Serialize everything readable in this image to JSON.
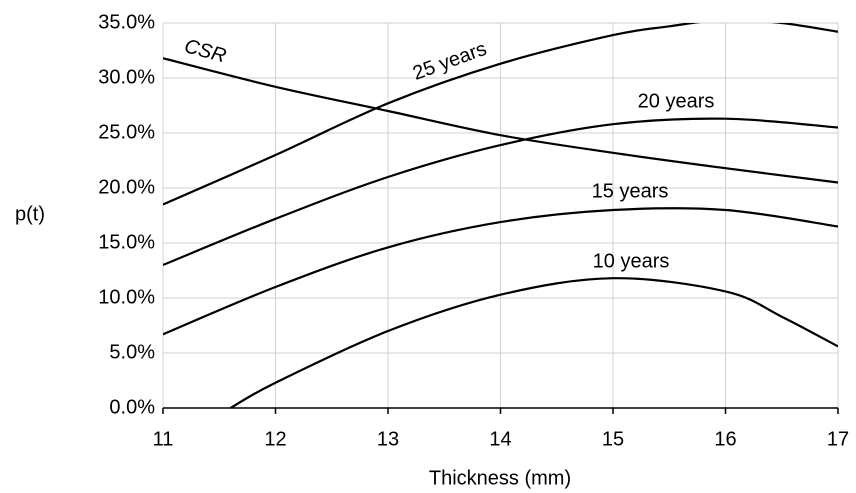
{
  "chart_data": {
    "type": "line",
    "xlabel": "Thickness (mm)",
    "ylabel": "p(t)",
    "xlim": [
      11,
      17
    ],
    "xticks": [
      11,
      12,
      13,
      14,
      15,
      16,
      17
    ],
    "ylim": [
      0,
      35
    ],
    "yticks": [
      {
        "value": 0,
        "label": "0.0%"
      },
      {
        "value": 5,
        "label": "5.0%"
      },
      {
        "value": 10,
        "label": "10.0%"
      },
      {
        "value": 15,
        "label": "15.0%"
      },
      {
        "value": 20,
        "label": "20.0%"
      },
      {
        "value": 25,
        "label": "25.0%"
      },
      {
        "value": 30,
        "label": "30.0%"
      },
      {
        "value": 35,
        "label": "35.0%"
      }
    ],
    "grid": true,
    "series": [
      {
        "name": "CSR",
        "color": "#000000",
        "x": [
          11,
          12,
          13,
          14,
          15,
          16,
          17
        ],
        "values": [
          31.8,
          29.2,
          27.0,
          24.8,
          23.2,
          21.8,
          20.5
        ]
      },
      {
        "name": "25 years",
        "color": "#000000",
        "x": [
          11,
          12,
          13,
          14,
          15,
          15.5,
          16,
          16.5,
          17
        ],
        "values": [
          18.5,
          23.0,
          27.7,
          31.3,
          33.9,
          34.7,
          35.3,
          35.0,
          34.2
        ]
      },
      {
        "name": "20 years",
        "color": "#000000",
        "x": [
          11,
          12,
          13,
          14,
          15,
          16,
          17
        ],
        "values": [
          13.0,
          17.2,
          21.0,
          23.9,
          25.8,
          26.3,
          25.5
        ]
      },
      {
        "name": "15 years",
        "color": "#000000",
        "x": [
          11,
          12,
          13,
          14,
          15,
          16,
          17
        ],
        "values": [
          6.7,
          11.0,
          14.6,
          16.9,
          18.0,
          18.0,
          16.5
        ]
      },
      {
        "name": "10 years",
        "color": "#000000",
        "x": [
          11.6,
          12,
          13,
          14,
          15,
          16,
          16.5,
          17
        ],
        "values": [
          0,
          2.3,
          7.0,
          10.3,
          11.8,
          10.6,
          8.3,
          5.6
        ]
      }
    ]
  }
}
